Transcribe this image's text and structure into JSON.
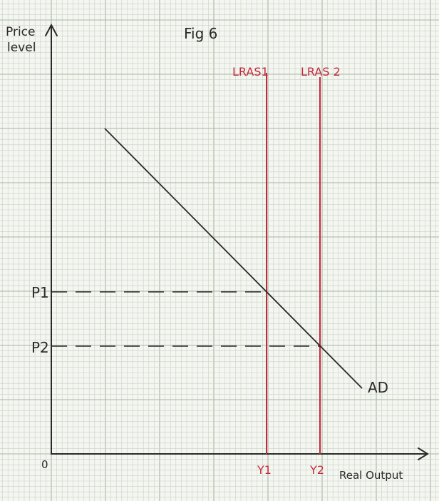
{
  "figure": {
    "title": "Fig 6"
  },
  "axes": {
    "y_label_line1": "Price",
    "y_label_line2": "level",
    "x_label": "Real Output",
    "origin_label": "0"
  },
  "curves": {
    "lras1_label": "LRAS1",
    "lras2_label": "LRAS 2",
    "ad_label": "AD"
  },
  "levels": {
    "p1_label": "P1",
    "p2_label": "P2",
    "y1_label": "Y1",
    "y2_label": "Y2"
  },
  "colors": {
    "ink": "#2a2a2a",
    "lras": "#c8283c",
    "grid_minor": "#c9d2c2",
    "grid_major": "#a9b5a2",
    "paper": "#f4f6f1"
  }
}
